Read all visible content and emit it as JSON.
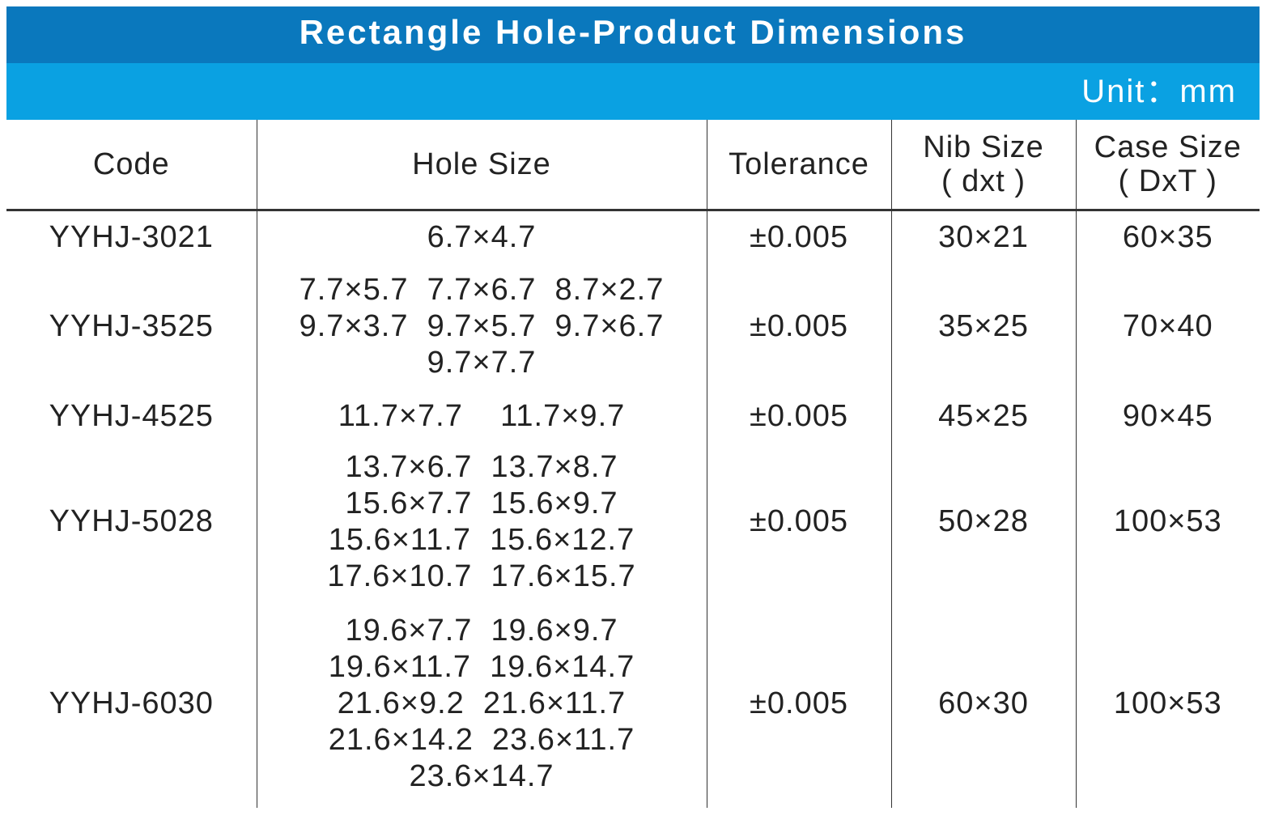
{
  "title": "Rectangle  Hole-Product  Dimensions",
  "unit": "Unit：mm",
  "headers": {
    "code": "Code",
    "hole_size": "Hole Size",
    "tolerance": "Tolerance",
    "nib_size": "Nib Size",
    "nib_size_sub": "( dxt )",
    "case_size": "Case Size",
    "case_size_sub": "( DxT )"
  },
  "rows": [
    {
      "code": "YYHJ-3021",
      "hole_lines": [
        "6.7×4.7"
      ],
      "tolerance": "±0.005",
      "nib": "30×21",
      "case": "60×35"
    },
    {
      "code": "YYHJ-3525",
      "hole_lines": [
        "7.7×5.7  7.7×6.7  8.7×2.7",
        "9.7×3.7  9.7×5.7  9.7×6.7",
        "9.7×7.7"
      ],
      "tolerance": "±0.005",
      "nib": "35×25",
      "case": "70×40"
    },
    {
      "code": "YYHJ-4525",
      "hole_lines": [
        "11.7×7.7    11.7×9.7"
      ],
      "tolerance": "±0.005",
      "nib": "45×25",
      "case": "90×45"
    },
    {
      "code": "YYHJ-5028",
      "hole_lines": [
        "13.7×6.7  13.7×8.7",
        "15.6×7.7  15.6×9.7",
        "15.6×11.7  15.6×12.7",
        "17.6×10.7  17.6×15.7"
      ],
      "tolerance": "±0.005",
      "nib": "50×28",
      "case": "100×53"
    },
    {
      "code": "YYHJ-6030",
      "hole_lines": [
        "19.6×7.7  19.6×9.7",
        "19.6×11.7  19.6×14.7",
        "21.6×9.2  21.6×11.7",
        "21.6×14.2  23.6×11.7",
        "23.6×14.7"
      ],
      "tolerance": "±0.005",
      "nib": "60×30",
      "case": "100×53"
    }
  ]
}
